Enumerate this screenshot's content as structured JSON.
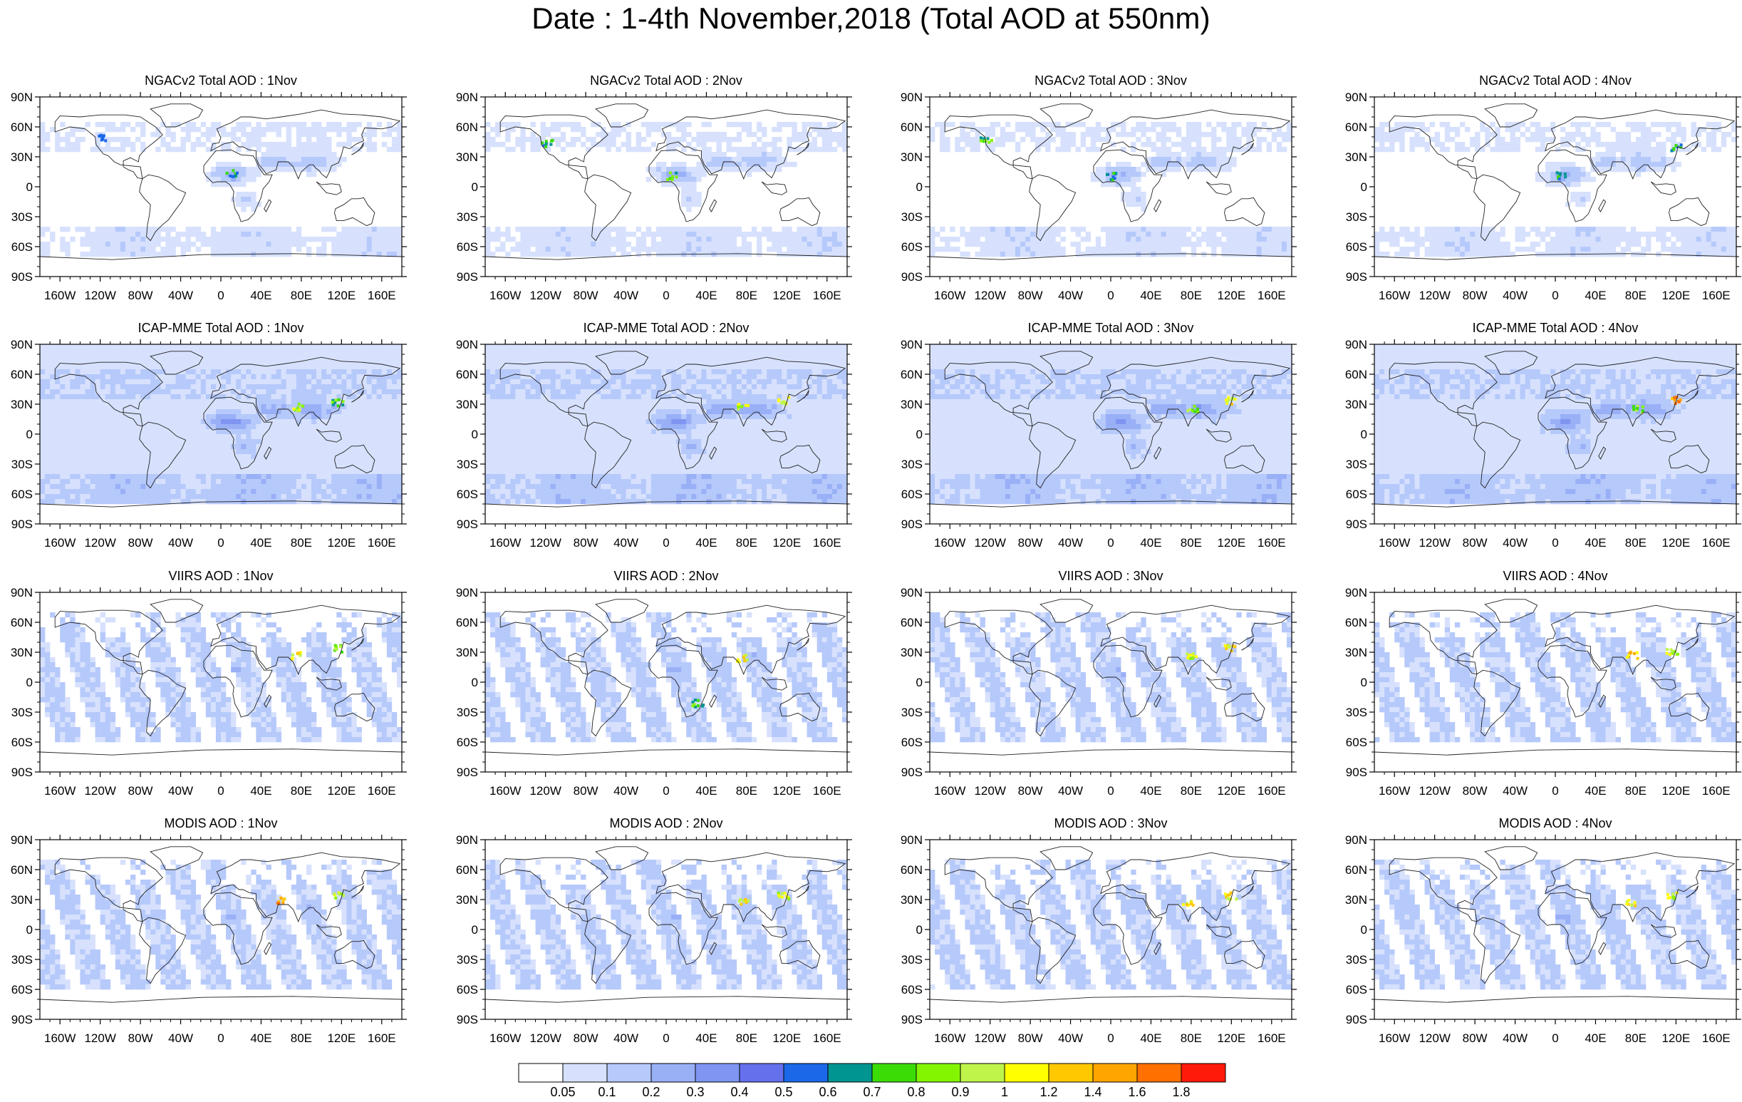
{
  "title": "Date : 1-4th November,2018 (Total AOD at 550nm)",
  "lat_ticks": [
    "90N",
    "60N",
    "30N",
    "0",
    "30S",
    "60S",
    "90S"
  ],
  "lon_ticks": [
    "160W",
    "120W",
    "80W",
    "40W",
    "0",
    "40E",
    "80E",
    "120E",
    "160E"
  ],
  "rows": [
    {
      "name": "NGACv2 Total AOD",
      "days": [
        "1Nov",
        "2Nov",
        "3Nov",
        "4Nov"
      ]
    },
    {
      "name": "ICAP-MME Total AOD",
      "days": [
        "1Nov",
        "2Nov",
        "3Nov",
        "4Nov"
      ]
    },
    {
      "name": "VIIRS AOD",
      "days": [
        "1Nov",
        "2Nov",
        "3Nov",
        "4Nov"
      ]
    },
    {
      "name": "MODIS AOD",
      "days": [
        "1Nov",
        "2Nov",
        "3Nov",
        "4Nov"
      ]
    }
  ],
  "panel_titles": [
    [
      "NGACv2 Total AOD : 1Nov",
      "NGACv2 Total AOD : 2Nov",
      "NGACv2 Total AOD : 3Nov",
      "NGACv2 Total AOD : 4Nov"
    ],
    [
      "ICAP-MME Total AOD : 1Nov",
      "ICAP-MME Total AOD : 2Nov",
      "ICAP-MME Total AOD : 3Nov",
      "ICAP-MME Total AOD : 4Nov"
    ],
    [
      "VIIRS AOD : 1Nov",
      "VIIRS AOD : 2Nov",
      "VIIRS AOD : 3Nov",
      "VIIRS AOD : 4Nov"
    ],
    [
      "MODIS AOD : 1Nov",
      "MODIS AOD : 2Nov",
      "MODIS AOD : 3Nov",
      "MODIS AOD : 4Nov"
    ]
  ],
  "chart_data": {
    "type": "heatmap",
    "title": "Date : 1-4th November,2018 (Total AOD at 550nm)",
    "variable": "Total AOD at 550nm",
    "projection": "cylindrical equidistant",
    "xlim": [
      -180,
      180
    ],
    "ylim": [
      -90,
      90
    ],
    "colorbar": {
      "labels": [
        "0.05",
        "0.1",
        "0.2",
        "0.3",
        "0.4",
        "0.5",
        "0.6",
        "0.7",
        "0.8",
        "0.9",
        "1",
        "1.2",
        "1.4",
        "1.6",
        "1.8"
      ],
      "colors": [
        "#ffffff",
        "#d7e1fd",
        "#b6c9fb",
        "#99b0f7",
        "#7f95f1",
        "#6470ec",
        "#1b68e8",
        "#009590",
        "#3bdc06",
        "#83f500",
        "#bff54a",
        "#ffff00",
        "#ffc800",
        "#ffa500",
        "#ff7000",
        "#ff1a0a"
      ]
    },
    "panels": [
      {
        "title": "NGACv2 Total AOD : 1Nov",
        "row": 0,
        "col": 0,
        "hotspots": [
          {
            "lon": 10,
            "lat": 15,
            "level": 8
          },
          {
            "lon": -120,
            "lat": 50,
            "level": 4
          }
        ]
      },
      {
        "title": "NGACv2 Total AOD : 2Nov",
        "row": 0,
        "col": 1,
        "hotspots": [
          {
            "lon": 5,
            "lat": 12,
            "level": 9
          },
          {
            "lon": -120,
            "lat": 45,
            "level": 8
          }
        ]
      },
      {
        "title": "NGACv2 Total AOD : 3Nov",
        "row": 0,
        "col": 2,
        "hotspots": [
          {
            "lon": 0,
            "lat": 12,
            "level": 8
          },
          {
            "lon": -125,
            "lat": 48,
            "level": 9
          }
        ]
      },
      {
        "title": "NGACv2 Total AOD : 4Nov",
        "row": 0,
        "col": 3,
        "hotspots": [
          {
            "lon": 5,
            "lat": 12,
            "level": 8
          },
          {
            "lon": 120,
            "lat": 40,
            "level": 8
          }
        ]
      },
      {
        "title": "ICAP-MME Total AOD : 1Nov",
        "row": 1,
        "col": 0,
        "hotspots": [
          {
            "lon": 75,
            "lat": 28,
            "level": 11
          },
          {
            "lon": 115,
            "lat": 33,
            "level": 9
          }
        ]
      },
      {
        "title": "ICAP-MME Total AOD : 2Nov",
        "row": 1,
        "col": 1,
        "hotspots": [
          {
            "lon": 75,
            "lat": 28,
            "level": 11
          },
          {
            "lon": 115,
            "lat": 35,
            "level": 11
          }
        ]
      },
      {
        "title": "ICAP-MME Total AOD : 3Nov",
        "row": 1,
        "col": 2,
        "hotspots": [
          {
            "lon": 80,
            "lat": 26,
            "level": 10
          },
          {
            "lon": 118,
            "lat": 35,
            "level": 12
          }
        ]
      },
      {
        "title": "ICAP-MME Total AOD : 4Nov",
        "row": 1,
        "col": 3,
        "hotspots": [
          {
            "lon": 80,
            "lat": 26,
            "level": 10
          },
          {
            "lon": 118,
            "lat": 35,
            "level": 14
          }
        ]
      },
      {
        "title": "VIIRS AOD : 1Nov",
        "row": 2,
        "col": 0,
        "hotspots": [
          {
            "lon": 75,
            "lat": 28,
            "level": 12
          },
          {
            "lon": 115,
            "lat": 35,
            "level": 10
          }
        ]
      },
      {
        "title": "VIIRS AOD : 2Nov",
        "row": 2,
        "col": 1,
        "hotspots": [
          {
            "lon": 75,
            "lat": 25,
            "level": 12
          },
          {
            "lon": 30,
            "lat": -20,
            "level": 9
          }
        ]
      },
      {
        "title": "VIIRS AOD : 3Nov",
        "row": 2,
        "col": 2,
        "hotspots": [
          {
            "lon": 118,
            "lat": 35,
            "level": 12
          },
          {
            "lon": 80,
            "lat": 28,
            "level": 11
          }
        ]
      },
      {
        "title": "VIIRS AOD : 4Nov",
        "row": 2,
        "col": 3,
        "hotspots": [
          {
            "lon": 75,
            "lat": 28,
            "level": 13
          },
          {
            "lon": 115,
            "lat": 32,
            "level": 11
          }
        ]
      },
      {
        "title": "MODIS AOD : 1Nov",
        "row": 3,
        "col": 0,
        "hotspots": [
          {
            "lon": 60,
            "lat": 30,
            "level": 14
          },
          {
            "lon": 115,
            "lat": 35,
            "level": 11
          }
        ]
      },
      {
        "title": "MODIS AOD : 2Nov",
        "row": 3,
        "col": 1,
        "hotspots": [
          {
            "lon": 75,
            "lat": 28,
            "level": 12
          },
          {
            "lon": 115,
            "lat": 35,
            "level": 11
          }
        ]
      },
      {
        "title": "MODIS AOD : 3Nov",
        "row": 3,
        "col": 2,
        "hotspots": [
          {
            "lon": 75,
            "lat": 28,
            "level": 12
          },
          {
            "lon": 118,
            "lat": 35,
            "level": 12
          }
        ]
      },
      {
        "title": "MODIS AOD : 4Nov",
        "row": 3,
        "col": 3,
        "hotspots": [
          {
            "lon": 75,
            "lat": 28,
            "level": 12
          },
          {
            "lon": 115,
            "lat": 35,
            "level": 11
          }
        ]
      }
    ]
  }
}
